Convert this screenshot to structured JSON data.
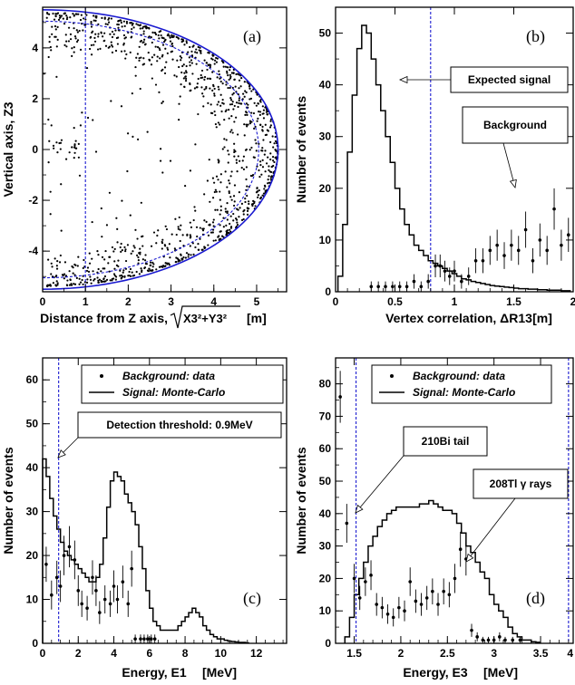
{
  "chart_data": [
    {
      "panel": "(a)",
      "type": "scatter",
      "xlabel": "Distance from Z axis,",
      "xlabel_math": "X3²+Y3²",
      "xlabel_unit": "[m]",
      "ylabel": "Vertical axis, Z3",
      "xlim": [
        0,
        5.7
      ],
      "ylim": [
        -5.6,
        5.6
      ],
      "xticks": [
        "0",
        "1",
        "2",
        "3",
        "4",
        "5"
      ],
      "yticks": [
        "-4",
        "-2",
        "0",
        "2",
        "4"
      ],
      "outer_radius": 5.5,
      "inner_radius": 5.05,
      "radial_cut": 1.0,
      "series": [
        {
          "values_description_only": "",
          "points": "events concentrated near boundary R≈4.6–5.6 m, small cluster near axis at z≈0"
        }
      ],
      "colors": {
        "points": "#000000",
        "boundary": "#1a1ad0",
        "cut": "#1a1ad0"
      }
    },
    {
      "panel": "(b)",
      "type": "line",
      "xlabel": "Vertex correlation, ΔR13",
      "xlabel_unit": "[m]",
      "ylabel": "Number of events",
      "xlim": [
        0,
        2
      ],
      "ylim": [
        0,
        55
      ],
      "xticks": [
        "0",
        "0.5",
        "1",
        "1.5",
        "2"
      ],
      "yticks": [
        "0",
        "10",
        "20",
        "30",
        "40",
        "50"
      ],
      "cut": 0.8,
      "annotations": [
        "Expected signal",
        "Background"
      ],
      "bin_width": 0.04,
      "signal_x": [
        0.04,
        0.08,
        0.12,
        0.16,
        0.2,
        0.24,
        0.28,
        0.32,
        0.36,
        0.4,
        0.44,
        0.48,
        0.52,
        0.56,
        0.6,
        0.64,
        0.68,
        0.72,
        0.76,
        0.8,
        0.84,
        0.88,
        0.92,
        0.96,
        1.0,
        1.04,
        1.08,
        1.12,
        1.16,
        1.2,
        1.24,
        1.28,
        1.32,
        1.36,
        1.4,
        1.44,
        1.48,
        1.52,
        1.56,
        1.6,
        1.64,
        1.68,
        1.72,
        1.76,
        1.8,
        1.84,
        1.88,
        1.92,
        1.96
      ],
      "signal_y": [
        3,
        13,
        27,
        38,
        47,
        51.5,
        50,
        45,
        40,
        35,
        30,
        25,
        20,
        16,
        13,
        11,
        9,
        8,
        7,
        6,
        5.5,
        5,
        4.5,
        4,
        3.5,
        3,
        2.5,
        2.3,
        2,
        1.8,
        1.6,
        1.4,
        1.2,
        1.1,
        1,
        0.9,
        0.8,
        0.7,
        0.6,
        0.6,
        0.5,
        0.5,
        0.4,
        0.4,
        0.3,
        0.3,
        0.3,
        0.2,
        0.2
      ],
      "background_x": [
        0.3,
        0.36,
        0.42,
        0.48,
        0.54,
        0.6,
        0.66,
        0.72,
        0.78,
        0.84,
        0.88,
        0.92,
        0.96,
        1.0,
        1.06,
        1.12,
        1.18,
        1.24,
        1.3,
        1.36,
        1.42,
        1.48,
        1.54,
        1.6,
        1.66,
        1.72,
        1.78,
        1.84,
        1.9,
        1.96
      ],
      "background_y": [
        1,
        1,
        1,
        1,
        1,
        1,
        2,
        1,
        2,
        5,
        5,
        4,
        3,
        4,
        2,
        3,
        6,
        6,
        8,
        9,
        7,
        9,
        8,
        12,
        6,
        10,
        8,
        16,
        9,
        11
      ],
      "background_err": [
        1,
        1,
        1,
        1,
        1,
        1,
        1.4,
        1,
        1.4,
        2.2,
        2.2,
        2,
        1.7,
        2,
        1.4,
        1.7,
        2.4,
        2.4,
        2.8,
        3,
        2.6,
        3,
        2.8,
        3.5,
        2.4,
        3.2,
        2.8,
        4,
        3,
        3.3
      ],
      "colors": {
        "signal": "#000000",
        "background": "#000000",
        "cut": "#1a1ad0"
      }
    },
    {
      "panel": "(c)",
      "type": "line",
      "xlabel": "Energy, E1",
      "xlabel_unit": "[MeV]",
      "ylabel": "Number of events",
      "xlim": [
        0,
        13.7
      ],
      "ylim": [
        0,
        65
      ],
      "xticks": [
        "0",
        "2",
        "4",
        "6",
        "8",
        "10",
        "12"
      ],
      "yticks": [
        "0",
        "10",
        "20",
        "30",
        "40",
        "50",
        "60"
      ],
      "cut": 0.9,
      "legend": [
        "Background: data",
        "Signal: Monte-Carlo"
      ],
      "annotations": [
        "Detection threshold: 0.9MeV"
      ],
      "bin_width": 0.2,
      "signal_x": [
        0.1,
        0.3,
        0.5,
        0.7,
        0.9,
        1.1,
        1.3,
        1.5,
        1.7,
        1.9,
        2.1,
        2.3,
        2.5,
        2.7,
        2.9,
        3.1,
        3.3,
        3.5,
        3.7,
        3.9,
        4.1,
        4.3,
        4.5,
        4.7,
        4.9,
        5.1,
        5.3,
        5.5,
        5.7,
        5.9,
        6.1,
        6.3,
        6.5,
        6.7,
        6.9,
        7.1,
        7.3,
        7.5,
        7.7,
        7.9,
        8.1,
        8.3,
        8.5,
        8.7,
        8.9,
        9.1,
        9.3,
        9.5,
        9.7,
        9.9,
        10.1,
        10.3,
        10.5,
        10.7,
        10.9,
        11.1,
        11.3,
        11.5
      ],
      "signal_y": [
        42,
        38,
        33,
        29,
        26,
        23,
        21,
        20,
        19,
        18,
        17,
        16,
        15,
        14,
        14,
        15,
        18,
        24,
        31,
        37,
        39,
        38,
        37,
        34,
        32,
        30,
        27,
        22,
        17,
        12,
        8,
        5,
        4,
        3,
        3,
        3,
        3,
        3,
        4,
        5,
        6,
        7,
        8,
        7,
        6,
        4,
        3,
        2,
        1.5,
        1,
        1,
        0.7,
        0.5,
        0.4,
        0.3,
        0.2,
        0.2,
        0.1
      ],
      "background_x": [
        0.2,
        0.5,
        0.8,
        1.0,
        1.2,
        1.5,
        1.8,
        2.0,
        2.2,
        2.5,
        2.8,
        3.0,
        3.2,
        3.5,
        3.8,
        4.0,
        4.2,
        4.5,
        4.8,
        5.0,
        5.2,
        5.5,
        5.7,
        5.9,
        6.1,
        6.3
      ],
      "background_y": [
        18,
        11,
        15,
        13,
        20,
        22,
        19,
        12,
        9,
        8,
        15,
        12,
        7,
        10,
        9,
        13,
        10,
        14,
        9,
        17,
        1,
        1,
        1,
        1,
        1,
        1
      ],
      "background_err": [
        4,
        3.3,
        3.8,
        3.6,
        4.5,
        4.7,
        4.4,
        3.5,
        3,
        2.8,
        3.9,
        3.5,
        2.6,
        3.2,
        3,
        3.6,
        3.2,
        3.7,
        3,
        4.1,
        1,
        1,
        1,
        1,
        1,
        1
      ],
      "colors": {
        "signal": "#000000",
        "background": "#000000",
        "cut": "#1a1ad0"
      }
    },
    {
      "panel": "(d)",
      "type": "line",
      "xlabel": "Energy, E3",
      "xlabel_unit": "[MeV]",
      "ylabel": "Number of events",
      "xlim": [
        1.3,
        3.85
      ],
      "ylim": [
        0,
        88
      ],
      "xticks": [
        "1.5",
        "2",
        "2.5",
        "3",
        "3.5"
      ],
      "xtick_last_partial": "4",
      "yticks": [
        "0",
        "10",
        "20",
        "30",
        "40",
        "50",
        "60",
        "70",
        "80"
      ],
      "cuts": [
        1.52,
        3.8
      ],
      "legend": [
        "Background: data",
        "Signal: Monte-Carlo"
      ],
      "annotations": [
        "210Bi tail",
        "208Tl γ rays"
      ],
      "bin_width": 0.05,
      "signal_x": [
        1.425,
        1.475,
        1.525,
        1.575,
        1.625,
        1.675,
        1.725,
        1.775,
        1.825,
        1.875,
        1.925,
        1.975,
        2.025,
        2.075,
        2.125,
        2.175,
        2.225,
        2.275,
        2.325,
        2.375,
        2.425,
        2.475,
        2.525,
        2.575,
        2.625,
        2.675,
        2.725,
        2.775,
        2.825,
        2.875,
        2.925,
        2.975,
        3.025,
        3.075,
        3.125,
        3.175,
        3.225,
        3.275,
        3.325,
        3.375,
        3.425,
        3.475
      ],
      "signal_y": [
        2,
        8,
        15,
        20,
        25,
        30,
        33,
        36,
        38,
        40,
        41,
        42,
        42,
        42,
        42,
        42,
        43,
        43,
        44,
        43,
        42,
        41,
        41,
        40,
        37,
        34,
        30,
        28,
        25,
        22,
        20,
        15,
        12,
        10,
        8,
        5,
        3,
        2,
        1,
        1,
        0.5,
        0.3
      ],
      "background_x": [
        1.35,
        1.42,
        1.5,
        1.56,
        1.62,
        1.68,
        1.74,
        1.8,
        1.86,
        1.92,
        1.98,
        2.04,
        2.1,
        2.16,
        2.22,
        2.28,
        2.34,
        2.4,
        2.46,
        2.52,
        2.58,
        2.64,
        2.7,
        2.76,
        2.82,
        2.88,
        2.94,
        3.0,
        3.06,
        3.12,
        3.2,
        3.28
      ],
      "background_y": [
        76,
        37,
        20,
        14,
        19,
        21,
        12,
        11,
        9,
        8,
        11,
        10,
        19,
        13,
        12,
        14,
        16,
        12,
        16,
        15,
        20,
        29,
        26,
        4,
        2,
        1,
        1,
        1,
        2,
        1,
        1,
        1
      ],
      "background_err": [
        8,
        6,
        4.5,
        3.7,
        4.4,
        4.6,
        3.5,
        3.3,
        3,
        2.8,
        3.3,
        3.2,
        4.4,
        3.6,
        3.5,
        3.7,
        4,
        3.5,
        4,
        3.9,
        4.5,
        5.4,
        5.1,
        2,
        1.4,
        1,
        1,
        1,
        1.4,
        1,
        1,
        1
      ],
      "colors": {
        "signal": "#000000",
        "background": "#000000",
        "cut": "#1a1ad0"
      }
    }
  ],
  "labels": {
    "a_tag": "(a)",
    "b_tag": "(b)",
    "c_tag": "(c)",
    "d_tag": "(d)"
  }
}
